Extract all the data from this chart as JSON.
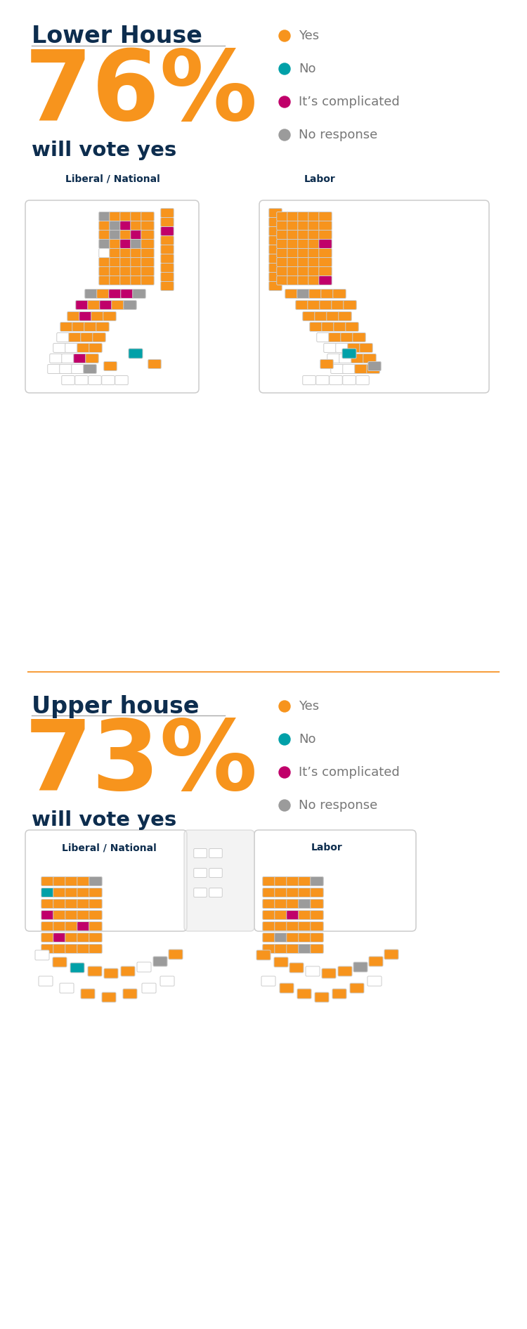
{
  "lower_house_pct": "76%",
  "upper_house_pct": "73%",
  "lower_house_label": "Lower House",
  "upper_house_label": "Upper house",
  "subtitle": "will vote yes",
  "legend_items": [
    "Yes",
    "No",
    "It’s complicated",
    "No response"
  ],
  "lower_lib_label": "Liberal / National",
  "lower_lab_label": "Labor",
  "upper_lib_label": "Liberal / National",
  "upper_lab_label": "Labor",
  "colors": {
    "yes": "#F7941D",
    "no": "#00A0A8",
    "complicated": "#C0006A",
    "no_response": "#9B9B9B",
    "title": "#0D2D4E",
    "pct": "#F7941D",
    "subtitle": "#0D2D4E",
    "divider_lower": "#CCCCCC",
    "divider_upper": "#F7A040",
    "seat_outline": "#CCCCCC",
    "background": "#FFFFFF",
    "section_label": "#0D2D4E",
    "legend_text": "#777777",
    "empty_fill": "#FFFFFF"
  }
}
